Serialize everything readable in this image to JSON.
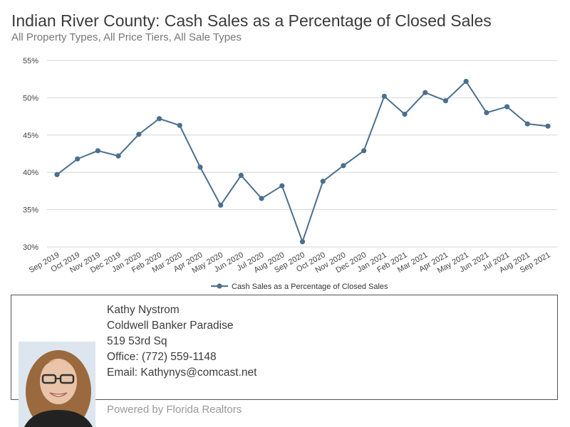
{
  "header": {
    "title": "Indian River County: Cash Sales as a Percentage of Closed Sales",
    "subtitle": "All Property Types, All Price Tiers, All Sale Types"
  },
  "chart_data": {
    "type": "line",
    "categories": [
      "Sep 2019",
      "Oct 2019",
      "Nov 2019",
      "Dec 2019",
      "Jan 2020",
      "Feb 2020",
      "Mar 2020",
      "Apr 2020",
      "May 2020",
      "Jun 2020",
      "Jul 2020",
      "Aug 2020",
      "Sep 2020",
      "Oct 2020",
      "Nov 2020",
      "Dec 2020",
      "Jan 2021",
      "Feb 2021",
      "Mar 2021",
      "Apr 2021",
      "May 2021",
      "Jun 2021",
      "Jul 2021",
      "Aug 2021",
      "Sep 2021"
    ],
    "series": [
      {
        "name": "Cash Sales as a Percentage of Closed Sales",
        "values": [
          39.7,
          41.8,
          42.9,
          42.2,
          45.1,
          47.2,
          46.3,
          40.7,
          35.6,
          39.6,
          36.5,
          38.2,
          30.7,
          38.8,
          40.9,
          42.9,
          50.2,
          47.8,
          50.7,
          49.6,
          52.2,
          48.0,
          48.8,
          46.5,
          46.2
        ],
        "color": "#4a6f8f"
      }
    ],
    "yticks": [
      "55%",
      "50%",
      "45%",
      "40%",
      "35%",
      "30%"
    ],
    "ylim": [
      30,
      55
    ],
    "grid": true,
    "legend_position": "bottom"
  },
  "agent": {
    "name": "Kathy Nystrom",
    "company": "Coldwell Banker Paradise",
    "address": "519 53rd Sq",
    "office": "Office: (772) 559-1148",
    "email": "Email: Kathynys@comcast.net"
  },
  "footer": {
    "powered_by": "Powered by Florida Realtors"
  }
}
